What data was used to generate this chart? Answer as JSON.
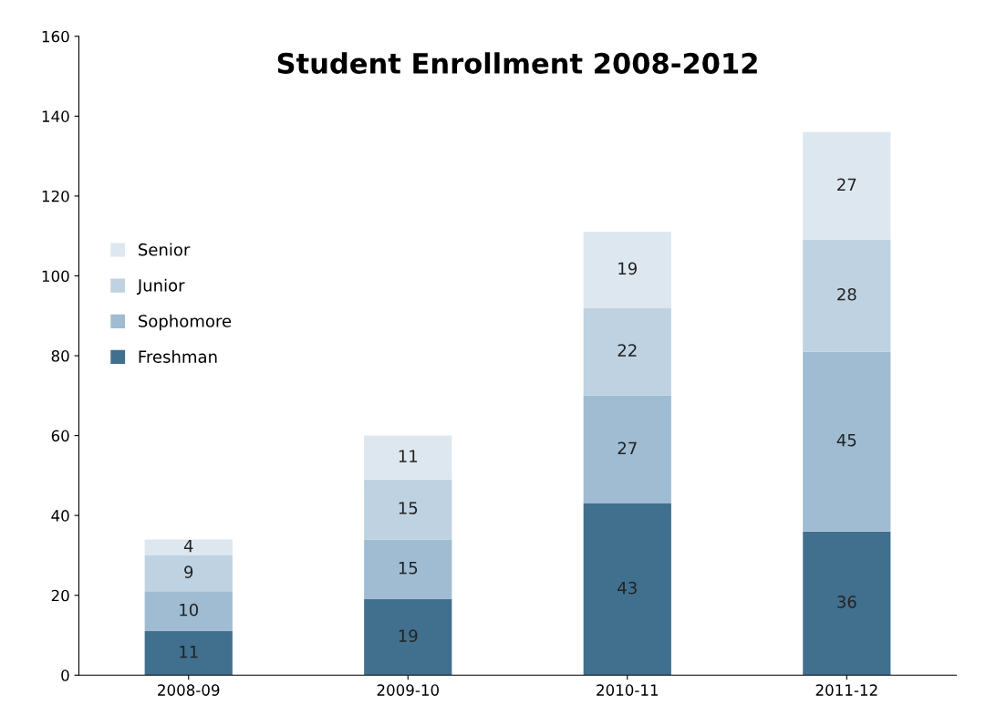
{
  "chart_data": {
    "type": "bar",
    "title": "Student Enrollment 2008-2012",
    "stacked": true,
    "categories": [
      "2008-09",
      "2009-10",
      "2010-11",
      "2011-12"
    ],
    "series": [
      {
        "name": "Freshman",
        "color": "#41708f",
        "values": [
          11,
          19,
          43,
          36
        ]
      },
      {
        "name": "Sophomore",
        "color": "#9fbcd2",
        "values": [
          10,
          15,
          27,
          45
        ]
      },
      {
        "name": "Junior",
        "color": "#bed2e1",
        "values": [
          9,
          15,
          22,
          28
        ]
      },
      {
        "name": "Senior",
        "color": "#dde7ef",
        "values": [
          4,
          11,
          19,
          27
        ]
      }
    ],
    "ylim": [
      0,
      160
    ],
    "yticks": [
      0,
      20,
      40,
      60,
      80,
      100,
      120,
      140,
      160
    ],
    "grid": false,
    "legend": "left",
    "data_labels": true
  }
}
